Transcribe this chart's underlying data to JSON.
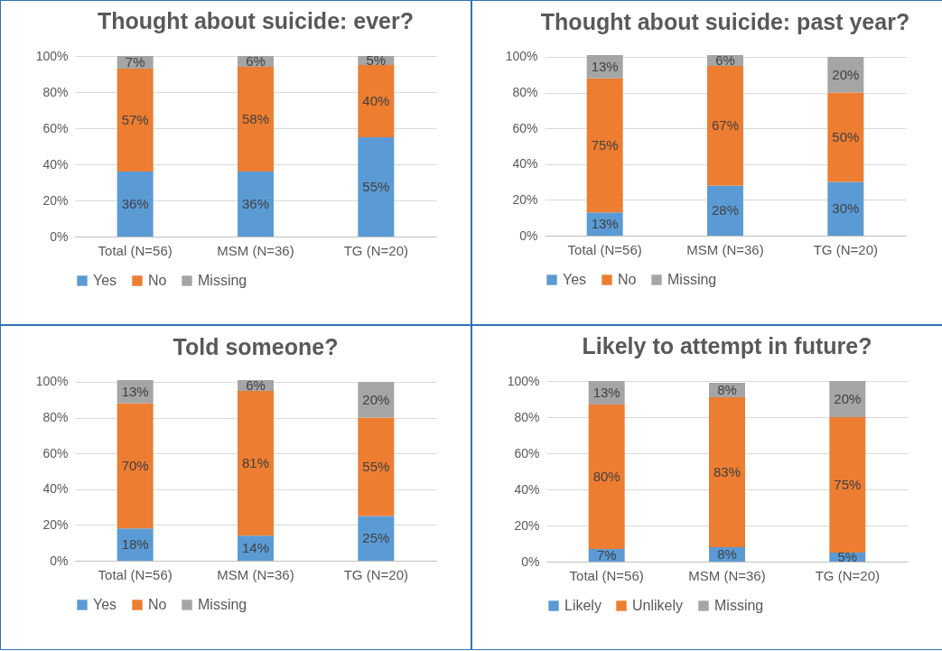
{
  "chart_data": [
    {
      "type": "bar",
      "title": "Thought about suicide: ever?",
      "stacked": true,
      "categories": [
        "Total (N=56)",
        "MSM (N=36)",
        "TG (N=20)"
      ],
      "ylim": [
        0,
        100
      ],
      "yticks": [
        {
          "value": 0,
          "label": "0%"
        },
        {
          "value": 20,
          "label": "20%"
        },
        {
          "value": 40,
          "label": "40%"
        },
        {
          "value": 60,
          "label": "60%"
        },
        {
          "value": 80,
          "label": "80%"
        },
        {
          "value": 100,
          "label": "100%"
        }
      ],
      "grid": "y",
      "legend": "bottom",
      "series": [
        {
          "name": "Yes",
          "color": "#5b9bd5",
          "values": [
            36,
            36,
            55
          ],
          "value_labels": [
            "36%",
            "36%",
            "55%"
          ]
        },
        {
          "name": "No",
          "color": "#ed7d31",
          "values": [
            57,
            58,
            40
          ],
          "value_labels": [
            "57%",
            "58%",
            "40%"
          ]
        },
        {
          "name": "Missing",
          "color": "#a5a5a5",
          "values": [
            7,
            6,
            5
          ],
          "value_labels": [
            "7%",
            "6%",
            "5%"
          ]
        }
      ]
    },
    {
      "type": "bar",
      "title": "Thought about suicide: past year?",
      "stacked": true,
      "categories": [
        "Total (N=56)",
        "MSM (N=36)",
        "TG (N=20)"
      ],
      "ylim": [
        0,
        101
      ],
      "yticks": [
        {
          "value": 0,
          "label": "0%"
        },
        {
          "value": 20,
          "label": "20%"
        },
        {
          "value": 40,
          "label": "40%"
        },
        {
          "value": 60,
          "label": "60%"
        },
        {
          "value": 80,
          "label": "80%"
        },
        {
          "value": 100,
          "label": "100%"
        }
      ],
      "grid": "y",
      "legend": "bottom",
      "series": [
        {
          "name": "Yes",
          "color": "#5b9bd5",
          "values": [
            13,
            28,
            30
          ],
          "value_labels": [
            "13%",
            "28%",
            "30%"
          ]
        },
        {
          "name": "No",
          "color": "#ed7d31",
          "values": [
            75,
            67,
            50
          ],
          "value_labels": [
            "75%",
            "67%",
            "50%"
          ]
        },
        {
          "name": "Missing",
          "color": "#a5a5a5",
          "values": [
            13,
            6,
            20
          ],
          "value_labels": [
            "13%",
            "6%",
            "20%"
          ]
        }
      ]
    },
    {
      "type": "bar",
      "title": "Told someone?",
      "stacked": true,
      "categories": [
        "Total (N=56)",
        "MSM (N=36)",
        "TG (N=20)"
      ],
      "ylim": [
        0,
        101
      ],
      "yticks": [
        {
          "value": 0,
          "label": "0%"
        },
        {
          "value": 20,
          "label": "20%"
        },
        {
          "value": 40,
          "label": "40%"
        },
        {
          "value": 60,
          "label": "60%"
        },
        {
          "value": 80,
          "label": "80%"
        },
        {
          "value": 100,
          "label": "100%"
        }
      ],
      "grid": "y",
      "legend": "bottom",
      "series": [
        {
          "name": "Yes",
          "color": "#5b9bd5",
          "values": [
            18,
            14,
            25
          ],
          "value_labels": [
            "18%",
            "14%",
            "25%"
          ]
        },
        {
          "name": "No",
          "color": "#ed7d31",
          "values": [
            70,
            81,
            55
          ],
          "value_labels": [
            "70%",
            "81%",
            "55%"
          ]
        },
        {
          "name": "Missing",
          "color": "#a5a5a5",
          "values": [
            13,
            6,
            20
          ],
          "value_labels": [
            "13%",
            "6%",
            "20%"
          ]
        }
      ]
    },
    {
      "type": "bar",
      "title": "Likely to attempt in future?",
      "stacked": true,
      "categories": [
        "Total (N=56)",
        "MSM (N=36)",
        "TG (N=20)"
      ],
      "ylim": [
        0,
        100
      ],
      "yticks": [
        {
          "value": 0,
          "label": "0%"
        },
        {
          "value": 20,
          "label": "20%"
        },
        {
          "value": 40,
          "label": "40%"
        },
        {
          "value": 60,
          "label": "60%"
        },
        {
          "value": 80,
          "label": "80%"
        },
        {
          "value": 100,
          "label": "100%"
        }
      ],
      "grid": "y",
      "legend": "bottom",
      "series": [
        {
          "name": "Likely",
          "color": "#5b9bd5",
          "values": [
            7,
            8,
            5
          ],
          "value_labels": [
            "7%",
            "8%",
            "5%"
          ]
        },
        {
          "name": "Unlikely",
          "color": "#ed7d31",
          "values": [
            80,
            83,
            75
          ],
          "value_labels": [
            "80%",
            "83%",
            "75%"
          ]
        },
        {
          "name": "Missing",
          "color": "#a5a5a5",
          "values": [
            13,
            8,
            20
          ],
          "value_labels": [
            "13%",
            "8%",
            "20%"
          ]
        }
      ]
    }
  ]
}
